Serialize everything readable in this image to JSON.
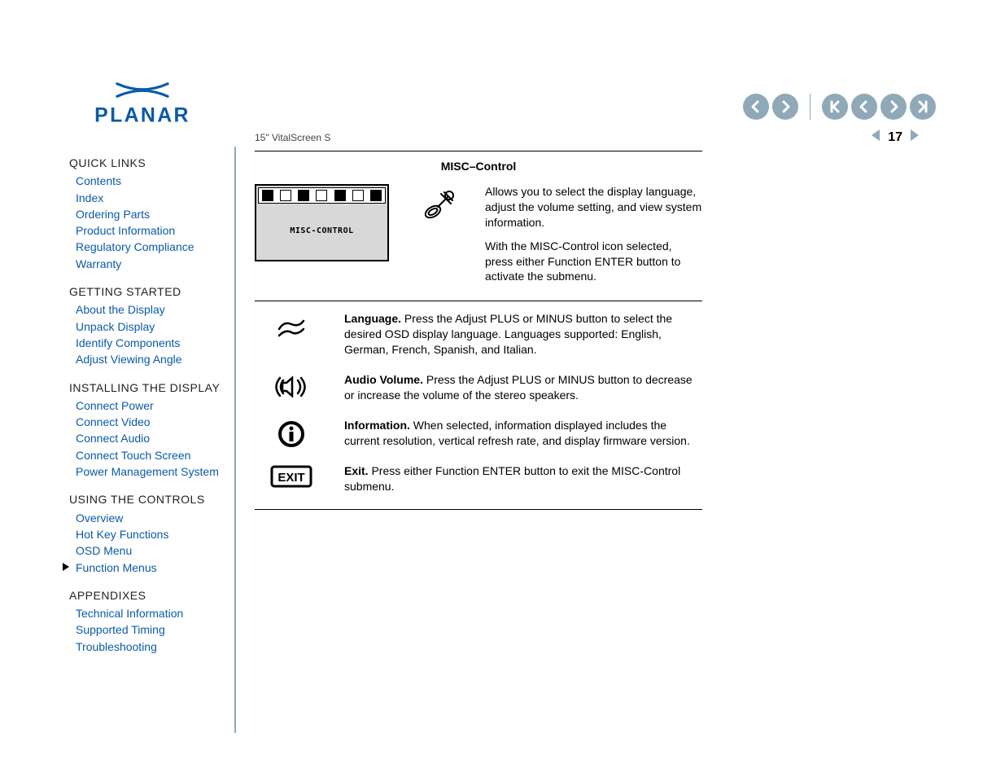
{
  "logo": {
    "brand": "PLANAR"
  },
  "sidebar": {
    "sections": [
      {
        "title": "QUICK LINKS",
        "items": [
          {
            "label": "Contents"
          },
          {
            "label": "Index"
          },
          {
            "label": "Ordering Parts"
          },
          {
            "label": "Product Information"
          },
          {
            "label": "Regulatory Compliance"
          },
          {
            "label": "Warranty"
          }
        ]
      },
      {
        "title": "GETTING STARTED",
        "items": [
          {
            "label": "About the Display"
          },
          {
            "label": "Unpack Display"
          },
          {
            "label": "Identify Components"
          },
          {
            "label": "Adjust Viewing Angle"
          }
        ]
      },
      {
        "title": "INSTALLING THE DISPLAY",
        "items": [
          {
            "label": "Connect Power"
          },
          {
            "label": "Connect Video"
          },
          {
            "label": "Connect Audio"
          },
          {
            "label": "Connect Touch Screen"
          },
          {
            "label": "Power Management System"
          }
        ]
      },
      {
        "title": "USING THE CONTROLS",
        "items": [
          {
            "label": "Overview"
          },
          {
            "label": "Hot Key Functions"
          },
          {
            "label": "OSD Menu"
          },
          {
            "label": "Function Menus",
            "current": true
          }
        ]
      },
      {
        "title": "APPENDIXES",
        "items": [
          {
            "label": "Technical Information"
          },
          {
            "label": "Supported Timing"
          },
          {
            "label": "Troubleshooting"
          }
        ]
      }
    ]
  },
  "content": {
    "heading": "MISC–Control",
    "osd_label": "MISC-CONTROL",
    "intro_p1": "Allows you to select the display language, adjust the volume setting, and view system information.",
    "intro_p2": "With the MISC-Control icon selected, press either Function ENTER button to activate the submenu.",
    "items": [
      {
        "title": "Language.",
        "text": "  Press the Adjust PLUS or MINUS button to select the desired OSD display language. Languages supported: English, German, French, Spanish, and Italian.",
        "icon": "language-icon"
      },
      {
        "title": "Audio Volume.",
        "text": "  Press the Adjust PLUS or MINUS button to decrease or increase the volume of the stereo speakers.",
        "icon": "audio-icon"
      },
      {
        "title": "Information.",
        "text": "  When selected, information displayed includes the current resolution, vertical refresh rate, and display firmware version.",
        "icon": "info-icon"
      },
      {
        "title": "Exit.",
        "text": "  Press either Function ENTER button to exit the MISC-Control submenu.",
        "icon": "exit-icon"
      }
    ]
  },
  "footer": {
    "model": "15\" VitalScreen S",
    "page": "17"
  },
  "colors": {
    "link": "#0b5aa8",
    "nav": "#8fa9b8",
    "logo": "#0b5aa8"
  }
}
